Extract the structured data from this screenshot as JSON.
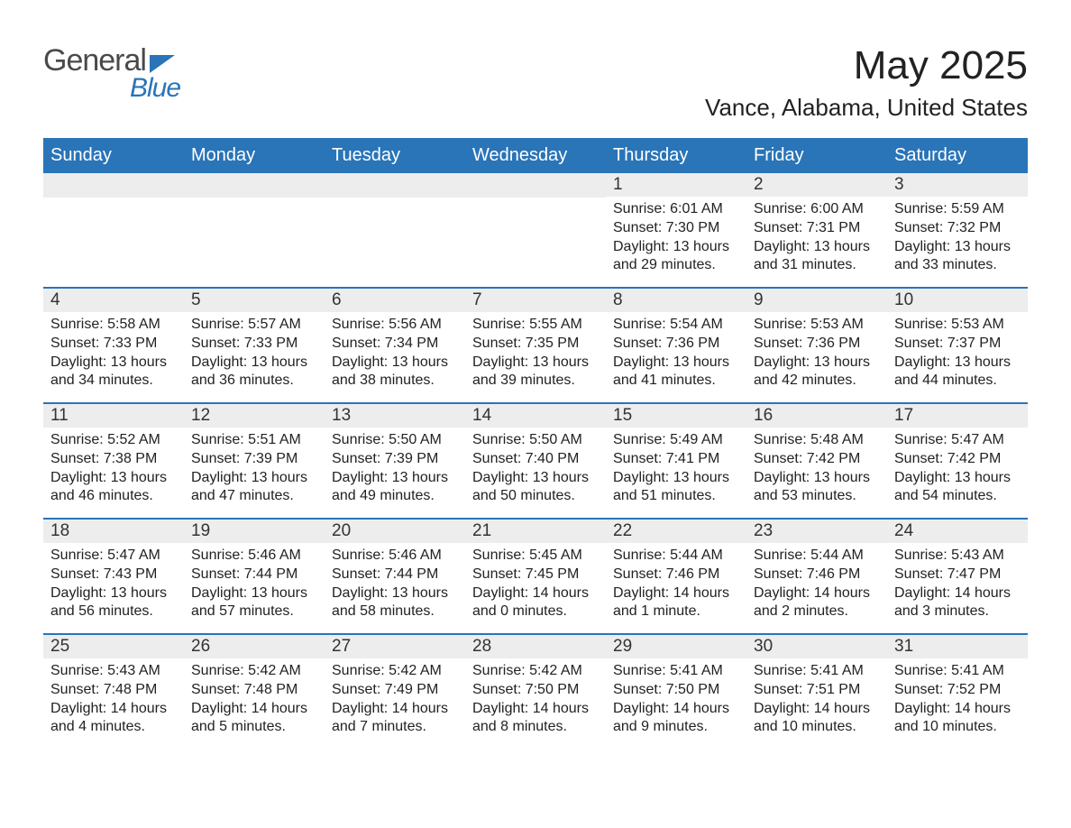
{
  "logo": {
    "text_general": "General",
    "text_blue": "Blue"
  },
  "header": {
    "month_year": "May 2025",
    "location": "Vance, Alabama, United States"
  },
  "colors": {
    "brand_blue": "#2a74b8",
    "header_bg": "#2a74b8",
    "header_text": "#ffffff",
    "daynum_bg": "#ededed",
    "text": "#222222",
    "logo_gray": "#4a4a4a",
    "background": "#ffffff"
  },
  "weekdays": [
    "Sunday",
    "Monday",
    "Tuesday",
    "Wednesday",
    "Thursday",
    "Friday",
    "Saturday"
  ],
  "weeks": [
    [
      {
        "empty": true
      },
      {
        "empty": true
      },
      {
        "empty": true
      },
      {
        "empty": true
      },
      {
        "day": "1",
        "sunrise": "Sunrise: 6:01 AM",
        "sunset": "Sunset: 7:30 PM",
        "daylight1": "Daylight: 13 hours",
        "daylight2": "and 29 minutes."
      },
      {
        "day": "2",
        "sunrise": "Sunrise: 6:00 AM",
        "sunset": "Sunset: 7:31 PM",
        "daylight1": "Daylight: 13 hours",
        "daylight2": "and 31 minutes."
      },
      {
        "day": "3",
        "sunrise": "Sunrise: 5:59 AM",
        "sunset": "Sunset: 7:32 PM",
        "daylight1": "Daylight: 13 hours",
        "daylight2": "and 33 minutes."
      }
    ],
    [
      {
        "day": "4",
        "sunrise": "Sunrise: 5:58 AM",
        "sunset": "Sunset: 7:33 PM",
        "daylight1": "Daylight: 13 hours",
        "daylight2": "and 34 minutes."
      },
      {
        "day": "5",
        "sunrise": "Sunrise: 5:57 AM",
        "sunset": "Sunset: 7:33 PM",
        "daylight1": "Daylight: 13 hours",
        "daylight2": "and 36 minutes."
      },
      {
        "day": "6",
        "sunrise": "Sunrise: 5:56 AM",
        "sunset": "Sunset: 7:34 PM",
        "daylight1": "Daylight: 13 hours",
        "daylight2": "and 38 minutes."
      },
      {
        "day": "7",
        "sunrise": "Sunrise: 5:55 AM",
        "sunset": "Sunset: 7:35 PM",
        "daylight1": "Daylight: 13 hours",
        "daylight2": "and 39 minutes."
      },
      {
        "day": "8",
        "sunrise": "Sunrise: 5:54 AM",
        "sunset": "Sunset: 7:36 PM",
        "daylight1": "Daylight: 13 hours",
        "daylight2": "and 41 minutes."
      },
      {
        "day": "9",
        "sunrise": "Sunrise: 5:53 AM",
        "sunset": "Sunset: 7:36 PM",
        "daylight1": "Daylight: 13 hours",
        "daylight2": "and 42 minutes."
      },
      {
        "day": "10",
        "sunrise": "Sunrise: 5:53 AM",
        "sunset": "Sunset: 7:37 PM",
        "daylight1": "Daylight: 13 hours",
        "daylight2": "and 44 minutes."
      }
    ],
    [
      {
        "day": "11",
        "sunrise": "Sunrise: 5:52 AM",
        "sunset": "Sunset: 7:38 PM",
        "daylight1": "Daylight: 13 hours",
        "daylight2": "and 46 minutes."
      },
      {
        "day": "12",
        "sunrise": "Sunrise: 5:51 AM",
        "sunset": "Sunset: 7:39 PM",
        "daylight1": "Daylight: 13 hours",
        "daylight2": "and 47 minutes."
      },
      {
        "day": "13",
        "sunrise": "Sunrise: 5:50 AM",
        "sunset": "Sunset: 7:39 PM",
        "daylight1": "Daylight: 13 hours",
        "daylight2": "and 49 minutes."
      },
      {
        "day": "14",
        "sunrise": "Sunrise: 5:50 AM",
        "sunset": "Sunset: 7:40 PM",
        "daylight1": "Daylight: 13 hours",
        "daylight2": "and 50 minutes."
      },
      {
        "day": "15",
        "sunrise": "Sunrise: 5:49 AM",
        "sunset": "Sunset: 7:41 PM",
        "daylight1": "Daylight: 13 hours",
        "daylight2": "and 51 minutes."
      },
      {
        "day": "16",
        "sunrise": "Sunrise: 5:48 AM",
        "sunset": "Sunset: 7:42 PM",
        "daylight1": "Daylight: 13 hours",
        "daylight2": "and 53 minutes."
      },
      {
        "day": "17",
        "sunrise": "Sunrise: 5:47 AM",
        "sunset": "Sunset: 7:42 PM",
        "daylight1": "Daylight: 13 hours",
        "daylight2": "and 54 minutes."
      }
    ],
    [
      {
        "day": "18",
        "sunrise": "Sunrise: 5:47 AM",
        "sunset": "Sunset: 7:43 PM",
        "daylight1": "Daylight: 13 hours",
        "daylight2": "and 56 minutes."
      },
      {
        "day": "19",
        "sunrise": "Sunrise: 5:46 AM",
        "sunset": "Sunset: 7:44 PM",
        "daylight1": "Daylight: 13 hours",
        "daylight2": "and 57 minutes."
      },
      {
        "day": "20",
        "sunrise": "Sunrise: 5:46 AM",
        "sunset": "Sunset: 7:44 PM",
        "daylight1": "Daylight: 13 hours",
        "daylight2": "and 58 minutes."
      },
      {
        "day": "21",
        "sunrise": "Sunrise: 5:45 AM",
        "sunset": "Sunset: 7:45 PM",
        "daylight1": "Daylight: 14 hours",
        "daylight2": "and 0 minutes."
      },
      {
        "day": "22",
        "sunrise": "Sunrise: 5:44 AM",
        "sunset": "Sunset: 7:46 PM",
        "daylight1": "Daylight: 14 hours",
        "daylight2": "and 1 minute."
      },
      {
        "day": "23",
        "sunrise": "Sunrise: 5:44 AM",
        "sunset": "Sunset: 7:46 PM",
        "daylight1": "Daylight: 14 hours",
        "daylight2": "and 2 minutes."
      },
      {
        "day": "24",
        "sunrise": "Sunrise: 5:43 AM",
        "sunset": "Sunset: 7:47 PM",
        "daylight1": "Daylight: 14 hours",
        "daylight2": "and 3 minutes."
      }
    ],
    [
      {
        "day": "25",
        "sunrise": "Sunrise: 5:43 AM",
        "sunset": "Sunset: 7:48 PM",
        "daylight1": "Daylight: 14 hours",
        "daylight2": "and 4 minutes."
      },
      {
        "day": "26",
        "sunrise": "Sunrise: 5:42 AM",
        "sunset": "Sunset: 7:48 PM",
        "daylight1": "Daylight: 14 hours",
        "daylight2": "and 5 minutes."
      },
      {
        "day": "27",
        "sunrise": "Sunrise: 5:42 AM",
        "sunset": "Sunset: 7:49 PM",
        "daylight1": "Daylight: 14 hours",
        "daylight2": "and 7 minutes."
      },
      {
        "day": "28",
        "sunrise": "Sunrise: 5:42 AM",
        "sunset": "Sunset: 7:50 PM",
        "daylight1": "Daylight: 14 hours",
        "daylight2": "and 8 minutes."
      },
      {
        "day": "29",
        "sunrise": "Sunrise: 5:41 AM",
        "sunset": "Sunset: 7:50 PM",
        "daylight1": "Daylight: 14 hours",
        "daylight2": "and 9 minutes."
      },
      {
        "day": "30",
        "sunrise": "Sunrise: 5:41 AM",
        "sunset": "Sunset: 7:51 PM",
        "daylight1": "Daylight: 14 hours",
        "daylight2": "and 10 minutes."
      },
      {
        "day": "31",
        "sunrise": "Sunrise: 5:41 AM",
        "sunset": "Sunset: 7:52 PM",
        "daylight1": "Daylight: 14 hours",
        "daylight2": "and 10 minutes."
      }
    ]
  ]
}
